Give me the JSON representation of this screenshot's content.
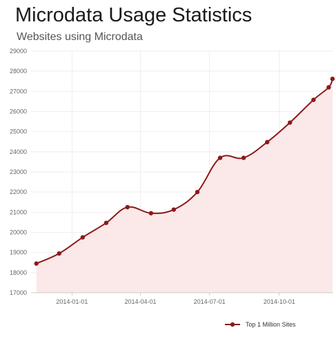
{
  "colors": {
    "line": "#8b1a1a",
    "area": "#fbe8e8",
    "grid": "#eeeeee"
  },
  "chart_data": {
    "type": "line",
    "title": "Microdata Usage Statistics",
    "subtitle": "Websites using Microdata",
    "xlabel": "",
    "ylabel": "",
    "x_axis_type": "date",
    "xlim": [
      "2013-11-08",
      "2014-12-11"
    ],
    "ylim": [
      17000,
      29000
    ],
    "y_ticks": [
      17000,
      18000,
      19000,
      20000,
      21000,
      22000,
      23000,
      24000,
      25000,
      26000,
      27000,
      28000,
      29000
    ],
    "x_ticks": [
      "2014-01-01",
      "2014-04-01",
      "2014-07-01",
      "2014-10-01"
    ],
    "grid": true,
    "legend_position": "bottom-right",
    "series": [
      {
        "name": "Top 1 Million Sites",
        "area_fill": true,
        "points": [
          {
            "x": "2013-11-15",
            "y": 18450
          },
          {
            "x": "2013-12-15",
            "y": 18950
          },
          {
            "x": "2014-01-15",
            "y": 19750
          },
          {
            "x": "2014-02-15",
            "y": 20470
          },
          {
            "x": "2014-03-15",
            "y": 21250
          },
          {
            "x": "2014-04-15",
            "y": 20950
          },
          {
            "x": "2014-05-15",
            "y": 21130
          },
          {
            "x": "2014-06-15",
            "y": 22000
          },
          {
            "x": "2014-07-15",
            "y": 23700
          },
          {
            "x": "2014-08-15",
            "y": 23700
          },
          {
            "x": "2014-09-15",
            "y": 24480
          },
          {
            "x": "2014-10-15",
            "y": 25450
          },
          {
            "x": "2014-11-15",
            "y": 26580
          },
          {
            "x": "2014-12-05",
            "y": 27200
          },
          {
            "x": "2014-12-10",
            "y": 27620
          }
        ]
      }
    ]
  }
}
